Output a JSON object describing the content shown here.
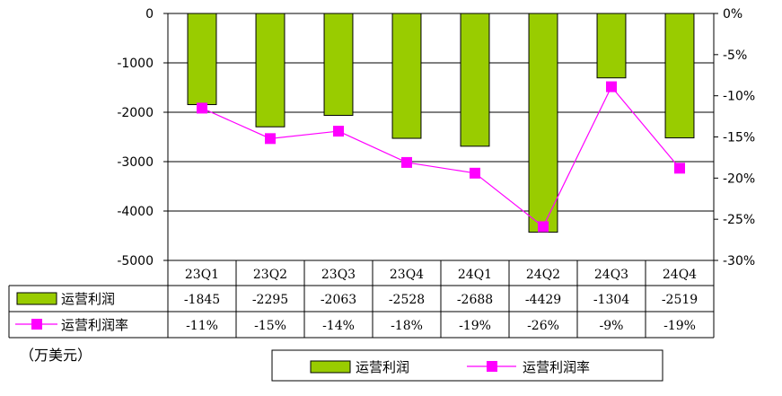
{
  "chart_data": {
    "type": "bar+line",
    "categories": [
      "23Q1",
      "23Q2",
      "23Q3",
      "23Q4",
      "24Q1",
      "24Q2",
      "24Q3",
      "24Q4"
    ],
    "series": [
      {
        "name": "运营利润",
        "type": "bar",
        "axis": "left",
        "values": [
          -1845,
          -2295,
          -2063,
          -2528,
          -2688,
          -4429,
          -1304,
          -2519
        ],
        "labels": [
          "-1845",
          "-2295",
          "-2063",
          "-2528",
          "-2688",
          "-4429",
          "-1304",
          "-2519"
        ],
        "color": "#99cc00"
      },
      {
        "name": "运营利润率",
        "type": "line",
        "axis": "right",
        "values": [
          -11.5,
          -15.2,
          -14.3,
          -18.1,
          -19.4,
          -25.9,
          -8.9,
          -18.8
        ],
        "labels": [
          "-11%",
          "-15%",
          "-14%",
          "-18%",
          "-19%",
          "-26%",
          "-9%",
          "-19%"
        ],
        "color": "#ff00ff"
      }
    ],
    "y_left": {
      "ticks": [
        0,
        -1000,
        -2000,
        -3000,
        -4000,
        -5000
      ],
      "tick_labels": [
        "0",
        "-1000",
        "-2000",
        "-3000",
        "-4000",
        "-5000"
      ],
      "ylim": [
        -5000,
        0
      ]
    },
    "y_right": {
      "ticks": [
        0,
        -5,
        -10,
        -15,
        -20,
        -25,
        -30
      ],
      "tick_labels": [
        "0%",
        "-5%",
        "-10%",
        "-15%",
        "-20%",
        "-25%",
        "-30%"
      ],
      "ylim": [
        -30,
        0
      ]
    },
    "unit_note": "（万美元）",
    "legend": {
      "placement": "bottom",
      "items": [
        "运营利润",
        "运营利润率"
      ]
    },
    "grid": true,
    "data_table": true
  }
}
